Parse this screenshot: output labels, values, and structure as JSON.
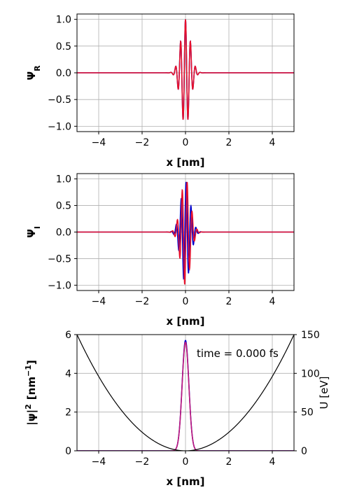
{
  "chart_data": [
    {
      "type": "line",
      "ylabel": "Ψ",
      "ylabel_sub": "R",
      "xlabel": "x  [nm]",
      "xlim": [
        -5,
        5
      ],
      "ylim": [
        -1.1,
        1.1
      ],
      "xticks": [
        -4,
        -2,
        0,
        2,
        4
      ],
      "yticks": [
        -1.0,
        -0.5,
        0.0,
        0.5,
        1.0
      ],
      "xtick_labels": [
        "−4",
        "−2",
        "0",
        "2",
        "4"
      ],
      "ytick_labels": [
        "−1.0",
        "−0.5",
        "0.0",
        "0.5",
        "1.0"
      ],
      "grid": true,
      "series": [
        {
          "color": "#0000cc",
          "kind": "real",
          "envelope_sigma": 0.22,
          "wavenumber": 27.5,
          "amplitude": 1.0,
          "shift": 0.0
        },
        {
          "color": "#e8102a",
          "kind": "real",
          "envelope_sigma": 0.22,
          "wavenumber": 27.5,
          "amplitude": 1.0,
          "shift": 0.0
        }
      ]
    },
    {
      "type": "line",
      "ylabel": "Ψ",
      "ylabel_sub": "I",
      "xlabel": "x [nm]",
      "xlim": [
        -5,
        5
      ],
      "ylim": [
        -1.1,
        1.1
      ],
      "xticks": [
        -4,
        -2,
        0,
        2,
        4
      ],
      "yticks": [
        -1.0,
        -0.5,
        0.0,
        0.5,
        1.0
      ],
      "xtick_labels": [
        "−4",
        "−2",
        "0",
        "2",
        "4"
      ],
      "ytick_labels": [
        "−1.0",
        "−0.5",
        "0.0",
        "0.5",
        "1.0"
      ],
      "grid": true,
      "series": [
        {
          "color": "#0000cc",
          "kind": "imag",
          "envelope_sigma": 0.22,
          "wavenumber": 27.5,
          "amplitude": 0.95,
          "shift": -0.03
        },
        {
          "color": "#e8102a",
          "kind": "imag",
          "envelope_sigma": 0.22,
          "wavenumber": 27.5,
          "amplitude": 1.0,
          "shift": 0.02
        }
      ]
    },
    {
      "type": "line",
      "ylabel": "|ψ|",
      "ylabel_sup": "2",
      "ylabel_units": "[nm",
      "ylabel_units_sup": "−1",
      "ylabel_units_close": "]",
      "xlabel": "x  [nm]",
      "xlim": [
        -5,
        5
      ],
      "ylim": [
        0,
        6
      ],
      "xticks": [
        -4,
        -2,
        0,
        2,
        4
      ],
      "yticks": [
        0,
        2,
        4,
        6
      ],
      "xtick_labels": [
        "−4",
        "−2",
        "0",
        "2",
        "4"
      ],
      "ytick_labels": [
        "0",
        "2",
        "4",
        "6"
      ],
      "right_ylabel": "U   [eV]",
      "right_ylim": [
        0,
        150
      ],
      "right_yticks": [
        0,
        50,
        100,
        150
      ],
      "right_ytick_labels": [
        "0",
        "50",
        "100",
        "150"
      ],
      "annotation": "time = 0.000 fs",
      "grid": true,
      "series": [
        {
          "color": "#0000cc",
          "kind": "density",
          "peak": 5.7,
          "envelope_sigma": 0.22
        },
        {
          "color": "#c0187a",
          "kind": "density",
          "peak": 5.6,
          "envelope_sigma": 0.22
        },
        {
          "color": "#000000",
          "kind": "potential",
          "axis": "right",
          "coefficient": 6.0
        }
      ]
    }
  ]
}
